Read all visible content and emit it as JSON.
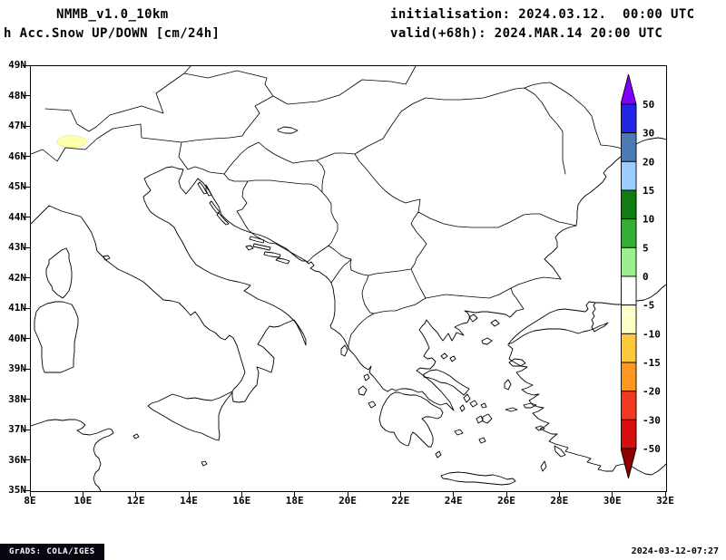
{
  "header": {
    "model": "NMMB_v1.0_10km",
    "product": "h Acc.Snow UP/DOWN [cm/24h]",
    "init": "initialisation: 2024.03.12.  00:00 UTC",
    "valid": "valid(+68h): 2024.MAR.14 20:00 UTC"
  },
  "map": {
    "lat_ticks": [
      "49N",
      "48N",
      "47N",
      "46N",
      "45N",
      "44N",
      "43N",
      "42N",
      "41N",
      "40N",
      "39N",
      "38N",
      "37N",
      "36N",
      "35N"
    ],
    "lon_ticks": [
      "8E",
      "10E",
      "12E",
      "14E",
      "16E",
      "18E",
      "20E",
      "22E",
      "24E",
      "26E",
      "28E",
      "30E",
      "32E"
    ]
  },
  "colorbar": {
    "labels": [
      "50",
      "30",
      "20",
      "15",
      "10",
      "5",
      "0",
      "-5",
      "-10",
      "-15",
      "-20",
      "-30",
      "-50"
    ],
    "colors": [
      "#8000ff",
      "#2224e6",
      "#4b7ab5",
      "#99ccff",
      "#0f7d0f",
      "#33b033",
      "#99f08c",
      "#ffffff",
      "#ffffc8",
      "#ffc83c",
      "#ff961e",
      "#f0391e",
      "#d80f0f",
      "#8f0000"
    ]
  },
  "footer": {
    "grads": "GrADS: COLA/IGES",
    "timestamp": "2024-03-12-07:27"
  }
}
